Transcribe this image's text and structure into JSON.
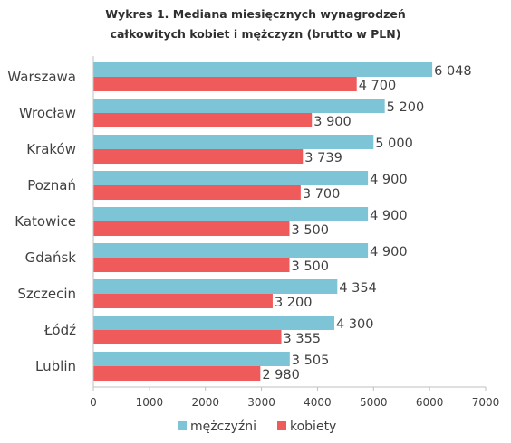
{
  "chart_data": {
    "type": "bar",
    "orientation": "horizontal",
    "title_lines": [
      "Wykres 1. Mediana miesięcznych wynagrodzeń",
      "całkowitych kobiet i mężczyzn (brutto w PLN)"
    ],
    "categories": [
      "Warszawa",
      "Wrocław",
      "Kraków",
      "Poznań",
      "Katowice",
      "Gdańsk",
      "Szczecin",
      "Łódź",
      "Lublin"
    ],
    "series": [
      {
        "name": "mężczyźni",
        "color": "#7cc4d6",
        "values": [
          6048,
          5200,
          5000,
          4900,
          4900,
          4900,
          4354,
          4300,
          3505
        ],
        "labels": [
          "6 048",
          "5 200",
          "5 000",
          "4 900",
          "4 900",
          "4 900",
          "4 354",
          "4 300",
          "3 505"
        ]
      },
      {
        "name": "kobiety",
        "color": "#ef5b5b",
        "values": [
          4700,
          3900,
          3739,
          3700,
          3500,
          3500,
          3200,
          3355,
          2980
        ],
        "labels": [
          "4 700",
          "3 900",
          "3 739",
          "3 700",
          "3 500",
          "3 500",
          "3 200",
          "3 355",
          "2 980"
        ]
      }
    ],
    "xlim": [
      0,
      7000
    ],
    "xticks": [
      "0",
      "1000",
      "2000",
      "3000",
      "4000",
      "5000",
      "6000",
      "7000"
    ],
    "grid": false,
    "legend_position": "bottom"
  }
}
